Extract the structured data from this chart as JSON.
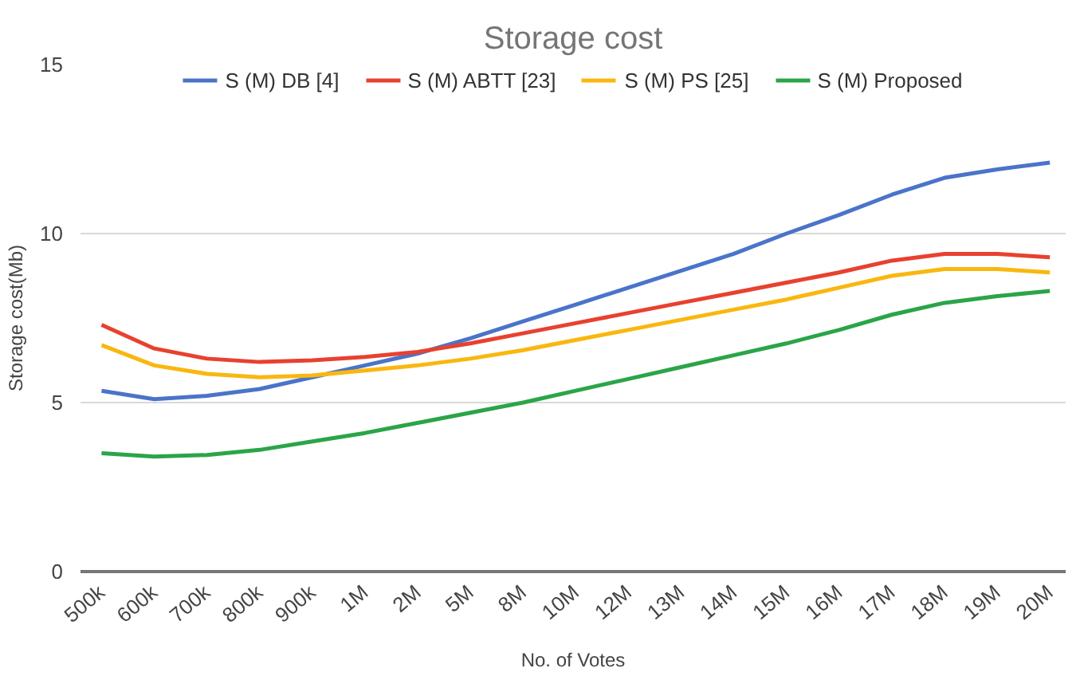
{
  "chart_data": {
    "type": "line",
    "title": "Storage cost",
    "xlabel": "No. of Votes",
    "ylabel": "Storage cost(Mb)",
    "categories": [
      "500k",
      "600k",
      "700k",
      "800k",
      "900k",
      "1M",
      "2M",
      "5M",
      "8M",
      "10M",
      "12M",
      "13M",
      "14M",
      "15M",
      "16M",
      "17M",
      "18M",
      "19M",
      "20M"
    ],
    "series": [
      {
        "name": "S (M) DB [4]",
        "color": "#4a74c9",
        "values": [
          5.35,
          5.1,
          5.2,
          5.4,
          5.75,
          6.1,
          6.45,
          6.9,
          7.4,
          7.9,
          8.4,
          8.9,
          9.4,
          10.0,
          10.55,
          11.15,
          11.65,
          11.9,
          12.1
        ]
      },
      {
        "name": "S (M) ABTT [23]",
        "color": "#e8412f",
        "values": [
          7.3,
          6.6,
          6.3,
          6.2,
          6.25,
          6.35,
          6.5,
          6.75,
          7.05,
          7.35,
          7.65,
          7.95,
          8.25,
          8.55,
          8.85,
          9.2,
          9.4,
          9.4,
          9.3
        ]
      },
      {
        "name": "S (M) PS [25]",
        "color": "#f9b70f",
        "values": [
          6.7,
          6.1,
          5.85,
          5.75,
          5.8,
          5.95,
          6.1,
          6.3,
          6.55,
          6.85,
          7.15,
          7.45,
          7.75,
          8.05,
          8.4,
          8.75,
          8.95,
          8.95,
          8.85
        ]
      },
      {
        "name": "S (M) Proposed",
        "color": "#2aa548",
        "values": [
          3.5,
          3.4,
          3.45,
          3.6,
          3.85,
          4.1,
          4.4,
          4.7,
          5.0,
          5.35,
          5.7,
          6.05,
          6.4,
          6.75,
          7.15,
          7.6,
          7.95,
          8.15,
          8.3
        ]
      }
    ],
    "ylim": [
      0,
      15
    ],
    "yticks": [
      0,
      5,
      10,
      15
    ],
    "grid": "y",
    "legend": "top",
    "line_style": "solid"
  }
}
